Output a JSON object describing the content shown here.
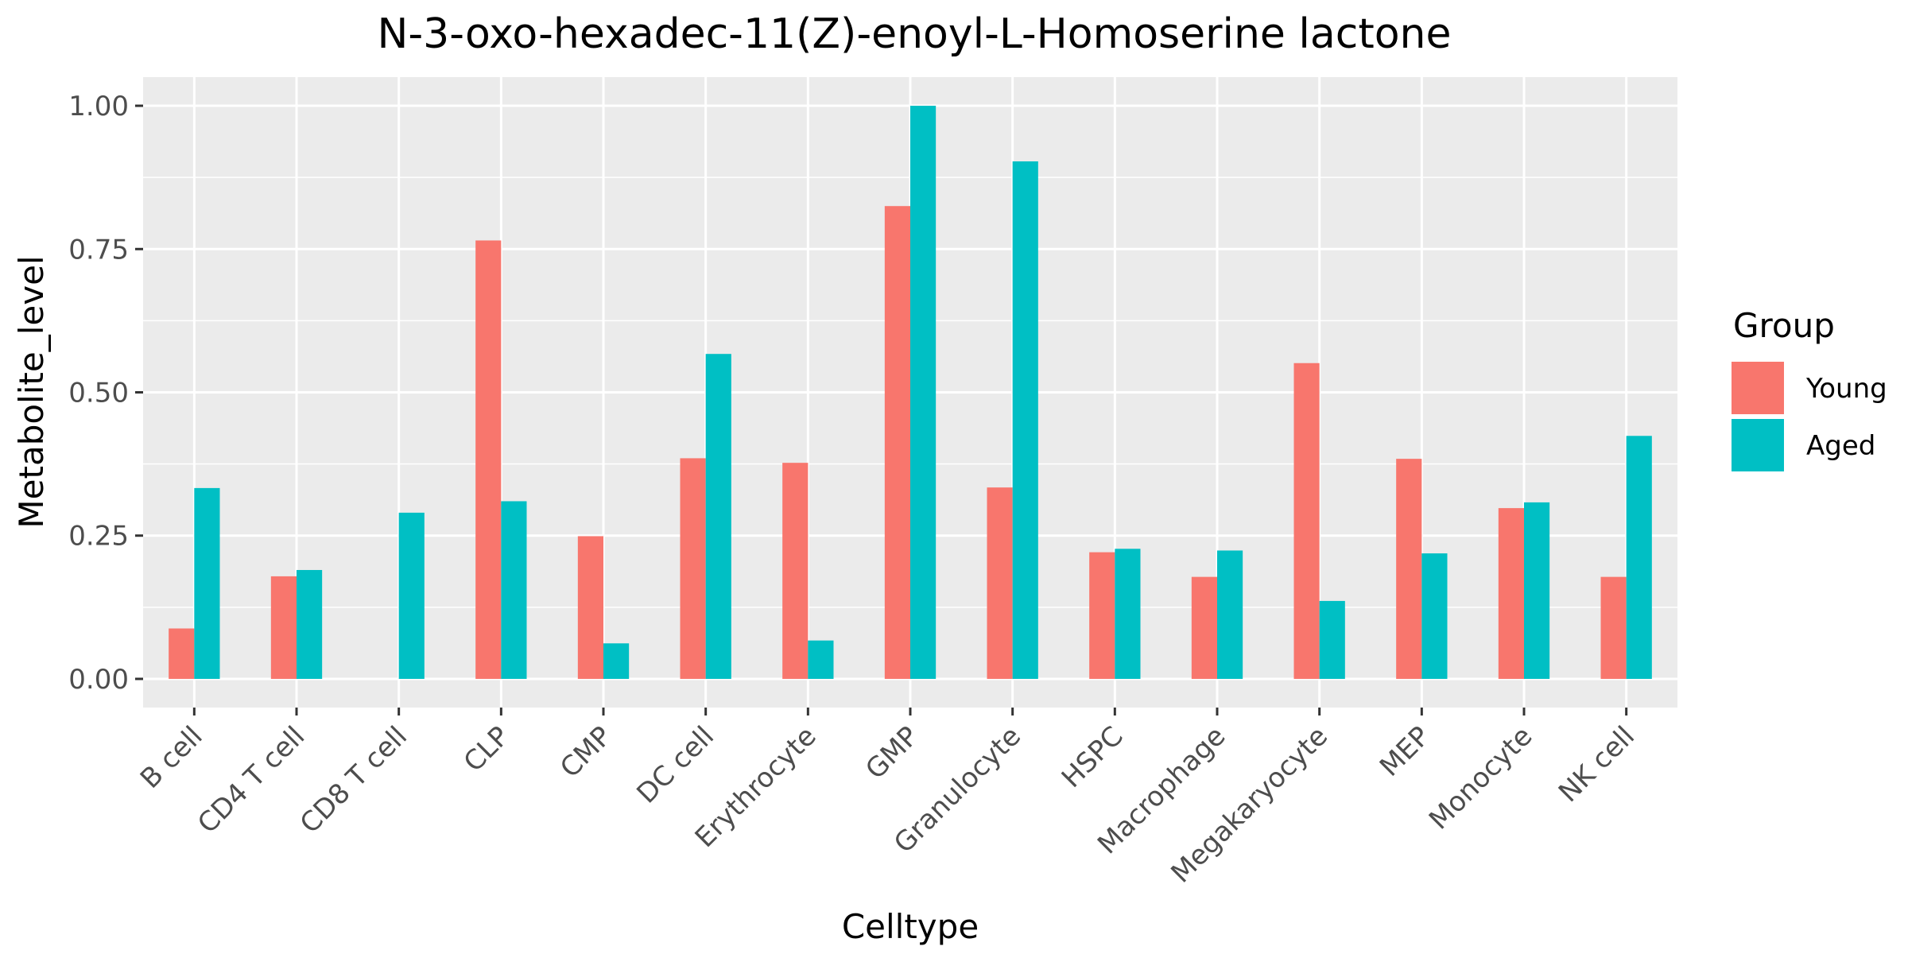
{
  "chart_data": {
    "type": "bar",
    "title": "N-3-oxo-hexadec-11(Z)-enoyl-L-Homoserine lactone",
    "xlabel": "Celltype",
    "ylabel": "Metabolite_level",
    "categories": [
      "B cell",
      "CD4 T cell",
      "CD8 T cell",
      "CLP",
      "CMP",
      "DC cell",
      "Erythrocyte",
      "GMP",
      "Granulocyte",
      "HSPC",
      "Macrophage",
      "Megakaryocyte",
      "MEP",
      "Monocyte",
      "NK cell"
    ],
    "series": [
      {
        "name": "Young",
        "color": "#F8766D",
        "values": [
          0.088,
          0.179,
          0.0,
          0.765,
          0.249,
          0.385,
          0.377,
          0.825,
          0.334,
          0.221,
          0.178,
          0.551,
          0.384,
          0.298,
          0.178
        ]
      },
      {
        "name": "Aged",
        "color": "#00BFC4",
        "values": [
          0.333,
          0.19,
          0.29,
          0.31,
          0.062,
          0.567,
          0.067,
          1.0,
          0.903,
          0.227,
          0.224,
          0.136,
          0.219,
          0.308,
          0.424
        ]
      }
    ],
    "ylim": [
      -0.05,
      1.05
    ],
    "yticks": [
      0.0,
      0.25,
      0.5,
      0.75,
      1.0
    ],
    "ytick_labels": [
      "0.00",
      "0.25",
      "0.50",
      "0.75",
      "1.00"
    ],
    "legend": {
      "title": "Group",
      "position": "right"
    },
    "grid": true,
    "panel_color": "#EBEBEB"
  }
}
